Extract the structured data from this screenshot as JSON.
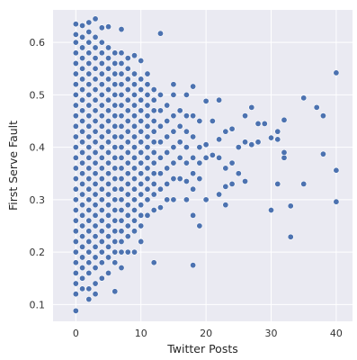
{
  "colors": {
    "plot_background": "#eaeaf2",
    "grid": "#ffffff",
    "marker": "#4c72b0",
    "marker_edge": "#ffffff"
  },
  "chart_data": {
    "type": "scatter",
    "title": "",
    "xlabel": "Twitter Posts",
    "ylabel": "First Serve Fault",
    "xlim": [
      -3.5,
      42.5
    ],
    "ylim": [
      0.068,
      0.662
    ],
    "xticks": [
      0,
      10,
      20,
      30,
      40
    ],
    "yticks": [
      0.1,
      0.2,
      0.3,
      0.4,
      0.5,
      0.6
    ],
    "xtick_labels": [
      "0",
      "10",
      "20",
      "30",
      "40"
    ],
    "ytick_labels": [
      "0.1",
      "0.2",
      "0.3",
      "0.4",
      "0.5",
      "0.6"
    ],
    "grid": true,
    "legend": false,
    "points": [
      [
        0,
        0.088
      ],
      [
        0,
        0.12
      ],
      [
        0,
        0.14
      ],
      [
        0,
        0.16
      ],
      [
        0,
        0.18
      ],
      [
        0,
        0.2
      ],
      [
        0,
        0.22
      ],
      [
        0,
        0.24
      ],
      [
        0,
        0.26
      ],
      [
        0,
        0.28
      ],
      [
        0,
        0.3
      ],
      [
        0,
        0.32
      ],
      [
        0,
        0.34
      ],
      [
        0,
        0.36
      ],
      [
        0,
        0.38
      ],
      [
        0,
        0.4
      ],
      [
        0,
        0.42
      ],
      [
        0,
        0.44
      ],
      [
        0,
        0.46
      ],
      [
        0,
        0.48
      ],
      [
        0,
        0.5
      ],
      [
        0,
        0.52
      ],
      [
        0,
        0.54
      ],
      [
        0,
        0.56
      ],
      [
        0,
        0.58
      ],
      [
        0,
        0.6
      ],
      [
        0,
        0.615
      ],
      [
        0,
        0.635
      ],
      [
        1,
        0.13
      ],
      [
        1,
        0.15
      ],
      [
        1,
        0.17
      ],
      [
        1,
        0.19
      ],
      [
        1,
        0.21
      ],
      [
        1,
        0.23
      ],
      [
        1,
        0.25
      ],
      [
        1,
        0.27
      ],
      [
        1,
        0.29
      ],
      [
        1,
        0.31
      ],
      [
        1,
        0.33
      ],
      [
        1,
        0.35
      ],
      [
        1,
        0.37
      ],
      [
        1,
        0.39
      ],
      [
        1,
        0.41
      ],
      [
        1,
        0.43
      ],
      [
        1,
        0.45
      ],
      [
        1,
        0.47
      ],
      [
        1,
        0.49
      ],
      [
        1,
        0.51
      ],
      [
        1,
        0.53
      ],
      [
        1,
        0.55
      ],
      [
        1,
        0.57
      ],
      [
        1,
        0.59
      ],
      [
        1,
        0.61
      ],
      [
        1,
        0.632
      ],
      [
        2,
        0.11
      ],
      [
        2,
        0.13
      ],
      [
        2,
        0.16
      ],
      [
        2,
        0.18
      ],
      [
        2,
        0.2
      ],
      [
        2,
        0.22
      ],
      [
        2,
        0.24
      ],
      [
        2,
        0.26
      ],
      [
        2,
        0.28
      ],
      [
        2,
        0.3
      ],
      [
        2,
        0.32
      ],
      [
        2,
        0.34
      ],
      [
        2,
        0.36
      ],
      [
        2,
        0.38
      ],
      [
        2,
        0.4
      ],
      [
        2,
        0.42
      ],
      [
        2,
        0.44
      ],
      [
        2,
        0.46
      ],
      [
        2,
        0.48
      ],
      [
        2,
        0.5
      ],
      [
        2,
        0.52
      ],
      [
        2,
        0.54
      ],
      [
        2,
        0.56
      ],
      [
        2,
        0.58
      ],
      [
        2,
        0.6
      ],
      [
        2,
        0.62
      ],
      [
        2,
        0.638
      ],
      [
        3,
        0.12
      ],
      [
        3,
        0.14
      ],
      [
        3,
        0.17
      ],
      [
        3,
        0.19
      ],
      [
        3,
        0.21
      ],
      [
        3,
        0.23
      ],
      [
        3,
        0.25
      ],
      [
        3,
        0.27
      ],
      [
        3,
        0.29
      ],
      [
        3,
        0.31
      ],
      [
        3,
        0.33
      ],
      [
        3,
        0.35
      ],
      [
        3,
        0.37
      ],
      [
        3,
        0.39
      ],
      [
        3,
        0.41
      ],
      [
        3,
        0.43
      ],
      [
        3,
        0.45
      ],
      [
        3,
        0.47
      ],
      [
        3,
        0.49
      ],
      [
        3,
        0.51
      ],
      [
        3,
        0.53
      ],
      [
        3,
        0.55
      ],
      [
        3,
        0.57
      ],
      [
        3,
        0.59
      ],
      [
        3,
        0.61
      ],
      [
        3,
        0.645
      ],
      [
        4,
        0.15
      ],
      [
        4,
        0.18
      ],
      [
        4,
        0.2
      ],
      [
        4,
        0.22
      ],
      [
        4,
        0.24
      ],
      [
        4,
        0.26
      ],
      [
        4,
        0.28
      ],
      [
        4,
        0.3
      ],
      [
        4,
        0.32
      ],
      [
        4,
        0.34
      ],
      [
        4,
        0.36
      ],
      [
        4,
        0.38
      ],
      [
        4,
        0.4
      ],
      [
        4,
        0.42
      ],
      [
        4,
        0.44
      ],
      [
        4,
        0.46
      ],
      [
        4,
        0.48
      ],
      [
        4,
        0.5
      ],
      [
        4,
        0.52
      ],
      [
        4,
        0.54
      ],
      [
        4,
        0.56
      ],
      [
        4,
        0.58
      ],
      [
        4,
        0.6
      ],
      [
        4,
        0.628
      ],
      [
        5,
        0.16
      ],
      [
        5,
        0.19
      ],
      [
        5,
        0.21
      ],
      [
        5,
        0.23
      ],
      [
        5,
        0.25
      ],
      [
        5,
        0.27
      ],
      [
        5,
        0.29
      ],
      [
        5,
        0.31
      ],
      [
        5,
        0.33
      ],
      [
        5,
        0.35
      ],
      [
        5,
        0.37
      ],
      [
        5,
        0.39
      ],
      [
        5,
        0.41
      ],
      [
        5,
        0.43
      ],
      [
        5,
        0.45
      ],
      [
        5,
        0.47
      ],
      [
        5,
        0.49
      ],
      [
        5,
        0.51
      ],
      [
        5,
        0.53
      ],
      [
        5,
        0.55
      ],
      [
        5,
        0.57
      ],
      [
        5,
        0.59
      ],
      [
        5,
        0.63
      ],
      [
        6,
        0.125
      ],
      [
        6,
        0.18
      ],
      [
        6,
        0.2
      ],
      [
        6,
        0.22
      ],
      [
        6,
        0.24
      ],
      [
        6,
        0.26
      ],
      [
        6,
        0.28
      ],
      [
        6,
        0.3
      ],
      [
        6,
        0.32
      ],
      [
        6,
        0.34
      ],
      [
        6,
        0.36
      ],
      [
        6,
        0.38
      ],
      [
        6,
        0.4
      ],
      [
        6,
        0.42
      ],
      [
        6,
        0.44
      ],
      [
        6,
        0.46
      ],
      [
        6,
        0.48
      ],
      [
        6,
        0.5
      ],
      [
        6,
        0.52
      ],
      [
        6,
        0.54
      ],
      [
        6,
        0.56
      ],
      [
        6,
        0.58
      ],
      [
        7,
        0.17
      ],
      [
        7,
        0.2
      ],
      [
        7,
        0.22
      ],
      [
        7,
        0.24
      ],
      [
        7,
        0.26
      ],
      [
        7,
        0.28
      ],
      [
        7,
        0.3
      ],
      [
        7,
        0.32
      ],
      [
        7,
        0.34
      ],
      [
        7,
        0.36
      ],
      [
        7,
        0.38
      ],
      [
        7,
        0.4
      ],
      [
        7,
        0.42
      ],
      [
        7,
        0.44
      ],
      [
        7,
        0.46
      ],
      [
        7,
        0.48
      ],
      [
        7,
        0.5
      ],
      [
        7,
        0.52
      ],
      [
        7,
        0.54
      ],
      [
        7,
        0.56
      ],
      [
        7,
        0.58
      ],
      [
        7,
        0.625
      ],
      [
        8,
        0.2
      ],
      [
        8,
        0.23
      ],
      [
        8,
        0.25
      ],
      [
        8,
        0.27
      ],
      [
        8,
        0.29
      ],
      [
        8,
        0.31
      ],
      [
        8,
        0.33
      ],
      [
        8,
        0.35
      ],
      [
        8,
        0.37
      ],
      [
        8,
        0.39
      ],
      [
        8,
        0.41
      ],
      [
        8,
        0.43
      ],
      [
        8,
        0.45
      ],
      [
        8,
        0.47
      ],
      [
        8,
        0.49
      ],
      [
        8,
        0.51
      ],
      [
        8,
        0.53
      ],
      [
        8,
        0.55
      ],
      [
        8,
        0.57
      ],
      [
        9,
        0.2
      ],
      [
        9,
        0.24
      ],
      [
        9,
        0.26
      ],
      [
        9,
        0.28
      ],
      [
        9,
        0.3
      ],
      [
        9,
        0.32
      ],
      [
        9,
        0.34
      ],
      [
        9,
        0.36
      ],
      [
        9,
        0.38
      ],
      [
        9,
        0.4
      ],
      [
        9,
        0.42
      ],
      [
        9,
        0.44
      ],
      [
        9,
        0.46
      ],
      [
        9,
        0.48
      ],
      [
        9,
        0.5
      ],
      [
        9,
        0.52
      ],
      [
        9,
        0.54
      ],
      [
        9,
        0.575
      ],
      [
        10,
        0.22
      ],
      [
        10,
        0.25
      ],
      [
        10,
        0.27
      ],
      [
        10,
        0.29
      ],
      [
        10,
        0.31
      ],
      [
        10,
        0.33
      ],
      [
        10,
        0.35
      ],
      [
        10,
        0.37
      ],
      [
        10,
        0.39
      ],
      [
        10,
        0.41
      ],
      [
        10,
        0.43
      ],
      [
        10,
        0.45
      ],
      [
        10,
        0.47
      ],
      [
        10,
        0.49
      ],
      [
        10,
        0.51
      ],
      [
        10,
        0.53
      ],
      [
        10,
        0.565
      ],
      [
        11,
        0.27
      ],
      [
        11,
        0.3
      ],
      [
        11,
        0.32
      ],
      [
        11,
        0.34
      ],
      [
        11,
        0.36
      ],
      [
        11,
        0.38
      ],
      [
        11,
        0.4
      ],
      [
        11,
        0.42
      ],
      [
        11,
        0.44
      ],
      [
        11,
        0.46
      ],
      [
        11,
        0.48
      ],
      [
        11,
        0.5
      ],
      [
        11,
        0.52
      ],
      [
        11,
        0.54
      ],
      [
        12,
        0.18
      ],
      [
        12,
        0.28
      ],
      [
        12,
        0.31
      ],
      [
        12,
        0.33
      ],
      [
        12,
        0.35
      ],
      [
        12,
        0.37
      ],
      [
        12,
        0.39
      ],
      [
        12,
        0.41
      ],
      [
        12,
        0.43
      ],
      [
        12,
        0.45
      ],
      [
        12,
        0.47
      ],
      [
        12,
        0.49
      ],
      [
        12,
        0.51
      ],
      [
        13,
        0.285
      ],
      [
        13,
        0.32
      ],
      [
        13,
        0.35
      ],
      [
        13,
        0.38
      ],
      [
        13,
        0.41
      ],
      [
        13,
        0.44
      ],
      [
        13,
        0.47
      ],
      [
        13,
        0.5
      ],
      [
        13,
        0.617
      ],
      [
        14,
        0.3
      ],
      [
        14,
        0.33
      ],
      [
        14,
        0.36
      ],
      [
        14,
        0.39
      ],
      [
        14,
        0.42
      ],
      [
        14,
        0.45
      ],
      [
        14,
        0.48
      ],
      [
        15,
        0.3
      ],
      [
        15,
        0.34
      ],
      [
        15,
        0.37
      ],
      [
        15,
        0.4
      ],
      [
        15,
        0.43
      ],
      [
        15,
        0.46
      ],
      [
        15,
        0.5
      ],
      [
        15,
        0.52
      ],
      [
        16,
        0.34
      ],
      [
        16,
        0.38
      ],
      [
        16,
        0.41
      ],
      [
        16,
        0.44
      ],
      [
        16,
        0.47
      ],
      [
        17,
        0.3
      ],
      [
        17,
        0.335
      ],
      [
        17,
        0.37
      ],
      [
        17,
        0.4
      ],
      [
        17,
        0.43
      ],
      [
        17,
        0.46
      ],
      [
        17,
        0.5
      ],
      [
        18,
        0.175
      ],
      [
        18,
        0.27
      ],
      [
        18,
        0.32
      ],
      [
        18,
        0.35
      ],
      [
        18,
        0.38
      ],
      [
        18,
        0.42
      ],
      [
        18,
        0.46
      ],
      [
        18,
        0.516
      ],
      [
        19,
        0.25
      ],
      [
        19,
        0.34
      ],
      [
        19,
        0.37
      ],
      [
        19,
        0.4
      ],
      [
        19,
        0.45
      ],
      [
        20,
        0.3
      ],
      [
        20,
        0.38
      ],
      [
        20,
        0.405
      ],
      [
        20,
        0.488
      ],
      [
        21,
        0.385
      ],
      [
        21,
        0.45
      ],
      [
        22,
        0.31
      ],
      [
        22,
        0.38
      ],
      [
        22,
        0.415
      ],
      [
        22,
        0.49
      ],
      [
        23,
        0.29
      ],
      [
        23,
        0.325
      ],
      [
        23,
        0.36
      ],
      [
        23,
        0.43
      ],
      [
        24,
        0.33
      ],
      [
        24,
        0.37
      ],
      [
        24,
        0.435
      ],
      [
        25,
        0.4
      ],
      [
        25,
        0.35
      ],
      [
        26,
        0.335
      ],
      [
        26,
        0.41
      ],
      [
        26,
        0.46
      ],
      [
        27,
        0.405
      ],
      [
        27,
        0.476
      ],
      [
        28,
        0.41
      ],
      [
        28,
        0.445
      ],
      [
        29,
        0.445
      ],
      [
        30,
        0.28
      ],
      [
        30,
        0.418
      ],
      [
        31,
        0.33
      ],
      [
        31,
        0.415
      ],
      [
        31,
        0.43
      ],
      [
        32,
        0.38
      ],
      [
        32,
        0.39
      ],
      [
        32,
        0.452
      ],
      [
        33,
        0.288
      ],
      [
        33,
        0.229
      ],
      [
        35,
        0.33
      ],
      [
        35,
        0.494
      ],
      [
        37,
        0.476
      ],
      [
        38,
        0.387
      ],
      [
        38,
        0.46
      ],
      [
        40,
        0.296
      ],
      [
        40,
        0.356
      ],
      [
        40,
        0.542
      ]
    ]
  }
}
